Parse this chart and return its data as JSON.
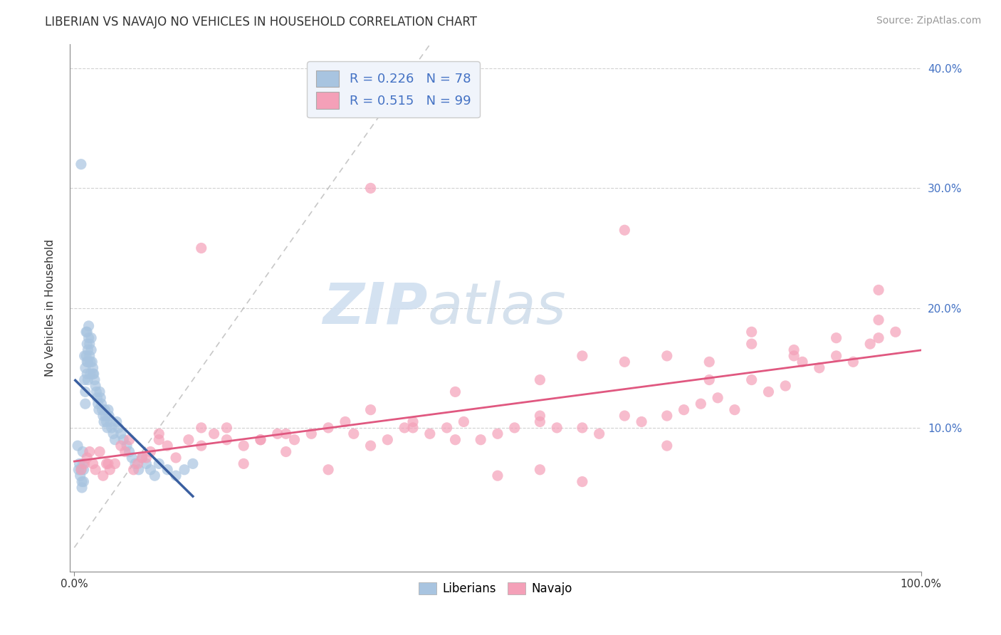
{
  "title": "LIBERIAN VS NAVAJO NO VEHICLES IN HOUSEHOLD CORRELATION CHART",
  "source": "Source: ZipAtlas.com",
  "ylabel": "No Vehicles in Household",
  "xlim": [
    -0.005,
    1.0
  ],
  "ylim": [
    -0.02,
    0.42
  ],
  "xtick_vals": [
    0.0,
    1.0
  ],
  "xtick_labels": [
    "0.0%",
    "100.0%"
  ],
  "ytick_vals": [
    0.1,
    0.2,
    0.3,
    0.4
  ],
  "ytick_labels": [
    "10.0%",
    "20.0%",
    "30.0%",
    "40.0%"
  ],
  "liberian_color": "#a8c4e0",
  "navajo_color": "#f4a0b8",
  "liberian_line_color": "#3a5fa0",
  "navajo_line_color": "#e05880",
  "legend_box_color": "#eef2f8",
  "R_liberian": 0.226,
  "N_liberian": 78,
  "R_navajo": 0.515,
  "N_navajo": 99,
  "watermark_zip": "ZIP",
  "watermark_atlas": "atlas",
  "background_color": "#ffffff",
  "grid_color": "#cccccc",
  "liberian_x": [
    0.004,
    0.005,
    0.006,
    0.007,
    0.008,
    0.009,
    0.009,
    0.01,
    0.01,
    0.011,
    0.011,
    0.012,
    0.012,
    0.013,
    0.013,
    0.013,
    0.014,
    0.014,
    0.015,
    0.015,
    0.015,
    0.015,
    0.016,
    0.016,
    0.016,
    0.017,
    0.017,
    0.018,
    0.018,
    0.019,
    0.019,
    0.02,
    0.02,
    0.021,
    0.022,
    0.022,
    0.023,
    0.024,
    0.025,
    0.026,
    0.027,
    0.028,
    0.029,
    0.03,
    0.031,
    0.032,
    0.033,
    0.034,
    0.035,
    0.036,
    0.037,
    0.038,
    0.039,
    0.04,
    0.041,
    0.043,
    0.044,
    0.046,
    0.048,
    0.05,
    0.052,
    0.055,
    0.058,
    0.062,
    0.065,
    0.068,
    0.072,
    0.076,
    0.08,
    0.085,
    0.09,
    0.095,
    0.1,
    0.11,
    0.12,
    0.13,
    0.14,
    0.008
  ],
  "liberian_y": [
    0.085,
    0.065,
    0.07,
    0.06,
    0.32,
    0.055,
    0.05,
    0.08,
    0.07,
    0.065,
    0.055,
    0.16,
    0.14,
    0.15,
    0.13,
    0.12,
    0.18,
    0.16,
    0.18,
    0.17,
    0.155,
    0.145,
    0.165,
    0.155,
    0.14,
    0.185,
    0.175,
    0.17,
    0.16,
    0.155,
    0.145,
    0.175,
    0.165,
    0.155,
    0.15,
    0.145,
    0.145,
    0.14,
    0.135,
    0.13,
    0.125,
    0.12,
    0.115,
    0.13,
    0.125,
    0.12,
    0.115,
    0.11,
    0.105,
    0.115,
    0.11,
    0.105,
    0.1,
    0.115,
    0.11,
    0.105,
    0.1,
    0.095,
    0.09,
    0.105,
    0.1,
    0.095,
    0.09,
    0.085,
    0.08,
    0.075,
    0.07,
    0.065,
    0.075,
    0.07,
    0.065,
    0.06,
    0.07,
    0.065,
    0.06,
    0.065,
    0.07,
    0.065
  ],
  "navajo_x": [
    0.008,
    0.012,
    0.015,
    0.018,
    0.022,
    0.025,
    0.03,
    0.034,
    0.038,
    0.042,
    0.048,
    0.055,
    0.06,
    0.065,
    0.07,
    0.075,
    0.085,
    0.09,
    0.1,
    0.11,
    0.12,
    0.135,
    0.15,
    0.165,
    0.18,
    0.2,
    0.22,
    0.24,
    0.26,
    0.28,
    0.3,
    0.32,
    0.33,
    0.35,
    0.37,
    0.39,
    0.4,
    0.42,
    0.44,
    0.46,
    0.48,
    0.5,
    0.52,
    0.55,
    0.57,
    0.6,
    0.62,
    0.65,
    0.67,
    0.7,
    0.72,
    0.74,
    0.76,
    0.78,
    0.8,
    0.82,
    0.84,
    0.86,
    0.88,
    0.9,
    0.92,
    0.94,
    0.95,
    0.97,
    0.15,
    0.25,
    0.35,
    0.45,
    0.55,
    0.65,
    0.75,
    0.85,
    0.95,
    0.2,
    0.3,
    0.5,
    0.6,
    0.7,
    0.8,
    0.9,
    0.1,
    0.4,
    0.6,
    0.7,
    0.8,
    0.35,
    0.55,
    0.65,
    0.75,
    0.85,
    0.95,
    0.45,
    0.55,
    0.25,
    0.18,
    0.04,
    0.08,
    0.15,
    0.22
  ],
  "navajo_y": [
    0.065,
    0.07,
    0.075,
    0.08,
    0.07,
    0.065,
    0.08,
    0.06,
    0.07,
    0.065,
    0.07,
    0.085,
    0.08,
    0.09,
    0.065,
    0.07,
    0.075,
    0.08,
    0.09,
    0.085,
    0.075,
    0.09,
    0.085,
    0.095,
    0.1,
    0.085,
    0.09,
    0.095,
    0.09,
    0.095,
    0.1,
    0.105,
    0.095,
    0.3,
    0.09,
    0.1,
    0.1,
    0.095,
    0.1,
    0.105,
    0.09,
    0.095,
    0.1,
    0.105,
    0.1,
    0.1,
    0.095,
    0.11,
    0.105,
    0.11,
    0.115,
    0.12,
    0.125,
    0.115,
    0.14,
    0.13,
    0.135,
    0.155,
    0.15,
    0.16,
    0.155,
    0.17,
    0.175,
    0.18,
    0.25,
    0.08,
    0.085,
    0.09,
    0.065,
    0.265,
    0.155,
    0.16,
    0.215,
    0.07,
    0.065,
    0.06,
    0.055,
    0.085,
    0.17,
    0.175,
    0.095,
    0.105,
    0.16,
    0.16,
    0.18,
    0.115,
    0.11,
    0.155,
    0.14,
    0.165,
    0.19,
    0.13,
    0.14,
    0.095,
    0.09,
    0.07,
    0.075,
    0.1,
    0.09
  ]
}
